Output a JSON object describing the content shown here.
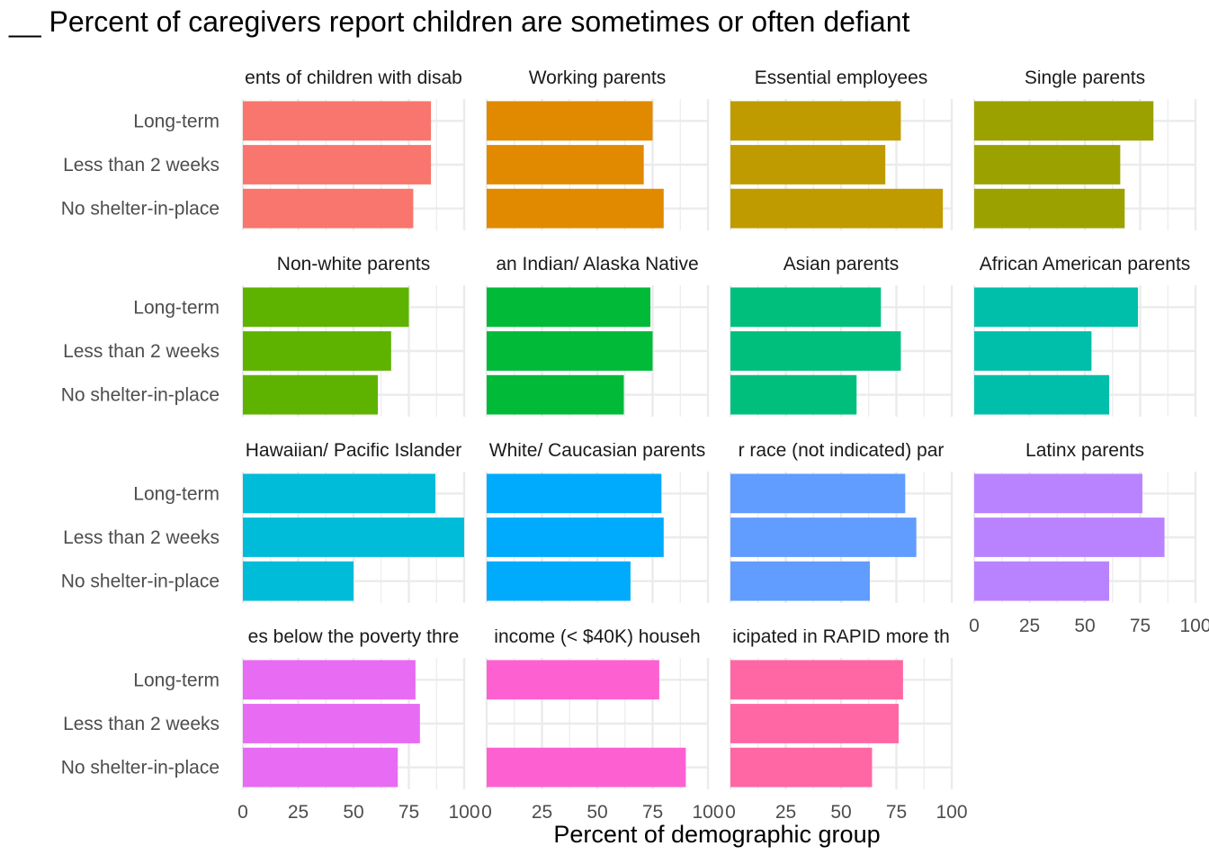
{
  "chart_data": {
    "type": "bar",
    "orientation": "horizontal",
    "title": "__ Percent of caregivers report children are sometimes or often defiant",
    "xlabel": "Percent of demographic group",
    "ylabel": "",
    "xlim": [
      0,
      100
    ],
    "x_ticks": [
      "0",
      "25",
      "50",
      "75",
      "100"
    ],
    "categories": [
      "Long-term",
      "Less than 2 weeks",
      "No shelter-in-place"
    ],
    "grid": true,
    "legend": "none",
    "panels": [
      {
        "name": "ents of children with disab",
        "color": "#F8766D",
        "values": [
          85,
          85,
          77
        ]
      },
      {
        "name": "Working parents",
        "color": "#E18A00",
        "values": [
          75,
          71,
          80
        ]
      },
      {
        "name": "Essential employees",
        "color": "#C09B00",
        "values": [
          77,
          70,
          96
        ]
      },
      {
        "name": "Single parents",
        "color": "#9BA200",
        "values": [
          81,
          66,
          68
        ]
      },
      {
        "name": "Non-white parents",
        "color": "#5EB300",
        "values": [
          75,
          67,
          61
        ]
      },
      {
        "name": "an Indian/ Alaska Native",
        "color": "#00BA38",
        "values": [
          74,
          75,
          62
        ]
      },
      {
        "name": "Asian parents",
        "color": "#00BF7D",
        "values": [
          68,
          77,
          57
        ]
      },
      {
        "name": "African American parents",
        "color": "#00BFAA",
        "values": [
          74,
          53,
          61
        ]
      },
      {
        "name": "Hawaiian/ Pacific Islander",
        "color": "#00BCD8",
        "values": [
          87,
          100,
          50
        ]
      },
      {
        "name": "White/ Caucasian parents",
        "color": "#00ABFD",
        "values": [
          79,
          80,
          65
        ]
      },
      {
        "name": "r race (not indicated) par",
        "color": "#619CFF",
        "values": [
          79,
          84,
          63
        ]
      },
      {
        "name": "Latinx parents",
        "color": "#B983FF",
        "values": [
          76,
          86,
          61
        ]
      },
      {
        "name": "es below the poverty thre",
        "color": "#E76BF3",
        "values": [
          78,
          80,
          70
        ]
      },
      {
        "name": "income (< $40K) househ",
        "color": "#FD61D1",
        "values": [
          78,
          null,
          90
        ]
      },
      {
        "name": "icipated in RAPID more th",
        "color": "#FF67A4",
        "values": [
          78,
          76,
          64
        ]
      }
    ]
  }
}
